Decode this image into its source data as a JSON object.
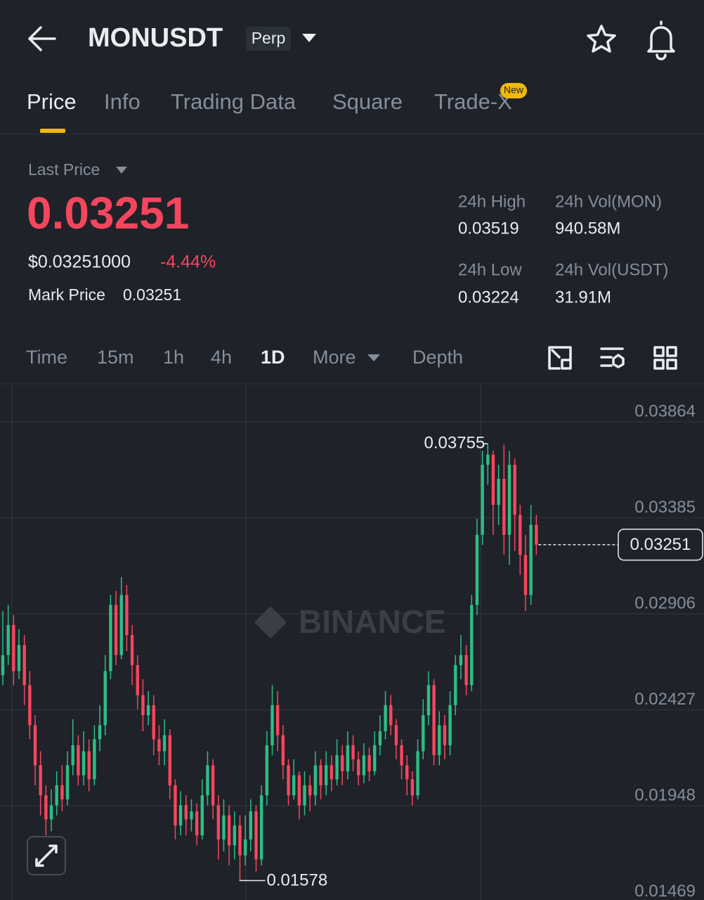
{
  "header": {
    "title": "MONUSDT",
    "badge": "Perp"
  },
  "tabs": {
    "items": [
      "Price",
      "Info",
      "Trading Data",
      "Square",
      "Trade-X"
    ],
    "new_badge": "New"
  },
  "ticker": {
    "last_price_label": "Last Price",
    "last_price": "0.03251",
    "usd_price": "$0.03251000",
    "change": "-4.44%",
    "mark_price_label": "Mark Price",
    "mark_price": "0.03251",
    "stats": [
      {
        "label": "24h High",
        "value": "0.03519"
      },
      {
        "label": "24h Vol(MON)",
        "value": "940.58M"
      },
      {
        "label": "24h Low",
        "value": "0.03224"
      },
      {
        "label": "24h Vol(USDT)",
        "value": "31.91M"
      }
    ]
  },
  "intervals": [
    "Time",
    "15m",
    "1h",
    "4h",
    "1D",
    "More",
    "Depth"
  ],
  "chart_data": {
    "type": "candlestick",
    "watermark": "BINANCE",
    "up_color": "#2ebd85",
    "down_color": "#f6465d",
    "grid": true,
    "ylim": [
      0.0146,
      0.0405
    ],
    "yticks": [
      0.03864,
      0.03385,
      0.02906,
      0.02427,
      0.01948,
      0.01469
    ],
    "open": [
      0.026,
      0.027,
      0.0285,
      0.0262,
      0.0275,
      0.0255,
      0.0235,
      0.0215,
      0.02,
      0.0188,
      0.0195,
      0.0205,
      0.0198,
      0.0215,
      0.0225,
      0.021,
      0.0222,
      0.0208,
      0.0228,
      0.0235,
      0.0262,
      0.0295,
      0.027,
      0.03,
      0.028,
      0.0265,
      0.025,
      0.024,
      0.0245,
      0.0228,
      0.0222,
      0.023,
      0.0205,
      0.0185,
      0.0195,
      0.0188,
      0.0192,
      0.018,
      0.02,
      0.0215,
      0.0195,
      0.0178,
      0.019,
      0.0175,
      0.0185,
      0.017,
      0.0178,
      0.0192,
      0.0168,
      0.02,
      0.0225,
      0.0245,
      0.023,
      0.0215,
      0.02,
      0.021,
      0.0195,
      0.0205,
      0.02,
      0.0215,
      0.0205,
      0.0215,
      0.0208,
      0.022,
      0.0212,
      0.0225,
      0.0218,
      0.021,
      0.022,
      0.0212,
      0.0225,
      0.0232,
      0.0245,
      0.0235,
      0.0225,
      0.0215,
      0.0208,
      0.02,
      0.0222,
      0.024,
      0.0255,
      0.022,
      0.0235,
      0.0225,
      0.0245,
      0.0265,
      0.027,
      0.0255,
      0.0295,
      0.033,
      0.0365,
      0.037,
      0.0345,
      0.0358,
      0.033,
      0.0365,
      0.034,
      0.032,
      0.03,
      0.0335
    ],
    "high": [
      0.0292,
      0.0295,
      0.029,
      0.0283,
      0.028,
      0.0262,
      0.024,
      0.0222,
      0.0205,
      0.0203,
      0.0212,
      0.0215,
      0.0222,
      0.0238,
      0.023,
      0.0232,
      0.0228,
      0.0235,
      0.0245,
      0.027,
      0.03,
      0.0302,
      0.0309,
      0.0305,
      0.0285,
      0.027,
      0.0258,
      0.0252,
      0.025,
      0.0235,
      0.0238,
      0.0233,
      0.0208,
      0.0202,
      0.02,
      0.0198,
      0.0196,
      0.0208,
      0.0222,
      0.0218,
      0.02,
      0.0198,
      0.0195,
      0.0192,
      0.019,
      0.019,
      0.0198,
      0.0195,
      0.0205,
      0.0232,
      0.0255,
      0.0252,
      0.0235,
      0.0218,
      0.0218,
      0.0212,
      0.0212,
      0.021,
      0.0222,
      0.0218,
      0.0222,
      0.022,
      0.0228,
      0.0225,
      0.0232,
      0.023,
      0.0222,
      0.0226,
      0.0224,
      0.0232,
      0.024,
      0.0252,
      0.025,
      0.0238,
      0.0228,
      0.022,
      0.0212,
      0.0228,
      0.0248,
      0.0262,
      0.0258,
      0.0242,
      0.024,
      0.0252,
      0.027,
      0.028,
      0.0275,
      0.03,
      0.0338,
      0.0372,
      0.03755,
      0.0372,
      0.0365,
      0.0375,
      0.0372,
      0.0368,
      0.0345,
      0.033,
      0.0345,
      0.034
    ],
    "low": [
      0.0255,
      0.0265,
      0.0255,
      0.0258,
      0.0245,
      0.0228,
      0.0205,
      0.019,
      0.018,
      0.0182,
      0.019,
      0.0192,
      0.0195,
      0.021,
      0.0205,
      0.0205,
      0.0202,
      0.0205,
      0.0222,
      0.023,
      0.0258,
      0.0265,
      0.0268,
      0.0272,
      0.0255,
      0.0243,
      0.0232,
      0.0235,
      0.022,
      0.0215,
      0.0215,
      0.0198,
      0.0178,
      0.018,
      0.018,
      0.0182,
      0.0175,
      0.0178,
      0.0195,
      0.0188,
      0.0168,
      0.0172,
      0.0165,
      0.0168,
      0.01578,
      0.0165,
      0.0172,
      0.0162,
      0.0165,
      0.0195,
      0.022,
      0.0222,
      0.0208,
      0.0195,
      0.0198,
      0.0188,
      0.019,
      0.0192,
      0.0195,
      0.0198,
      0.02,
      0.0202,
      0.0205,
      0.0205,
      0.0208,
      0.0212,
      0.0205,
      0.0206,
      0.0207,
      0.021,
      0.022,
      0.0228,
      0.023,
      0.0218,
      0.0208,
      0.02,
      0.0195,
      0.0198,
      0.0218,
      0.0235,
      0.0215,
      0.0215,
      0.0218,
      0.022,
      0.024,
      0.0258,
      0.025,
      0.0252,
      0.029,
      0.0325,
      0.0355,
      0.033,
      0.0335,
      0.032,
      0.0315,
      0.0322,
      0.031,
      0.0292,
      0.0295,
      0.032
    ],
    "close": [
      0.027,
      0.0285,
      0.0262,
      0.0275,
      0.0255,
      0.0235,
      0.0215,
      0.02,
      0.0188,
      0.0195,
      0.0205,
      0.0198,
      0.0215,
      0.0225,
      0.021,
      0.0222,
      0.0208,
      0.0228,
      0.0235,
      0.0262,
      0.0295,
      0.027,
      0.03,
      0.028,
      0.0265,
      0.025,
      0.024,
      0.0245,
      0.0228,
      0.0222,
      0.023,
      0.0205,
      0.0185,
      0.0195,
      0.0188,
      0.0192,
      0.018,
      0.02,
      0.0215,
      0.0195,
      0.0178,
      0.019,
      0.0175,
      0.0185,
      0.017,
      0.0178,
      0.0192,
      0.0168,
      0.02,
      0.0225,
      0.0245,
      0.023,
      0.0215,
      0.02,
      0.021,
      0.0195,
      0.0205,
      0.02,
      0.0215,
      0.0205,
      0.0215,
      0.0208,
      0.022,
      0.0212,
      0.0225,
      0.0218,
      0.021,
      0.022,
      0.0212,
      0.0225,
      0.0232,
      0.0245,
      0.0235,
      0.0225,
      0.0215,
      0.0208,
      0.02,
      0.0222,
      0.024,
      0.0255,
      0.022,
      0.0235,
      0.0225,
      0.0245,
      0.0265,
      0.027,
      0.0255,
      0.0295,
      0.033,
      0.0365,
      0.037,
      0.0345,
      0.0358,
      0.033,
      0.0365,
      0.034,
      0.032,
      0.03,
      0.0335,
      0.03251
    ]
  }
}
